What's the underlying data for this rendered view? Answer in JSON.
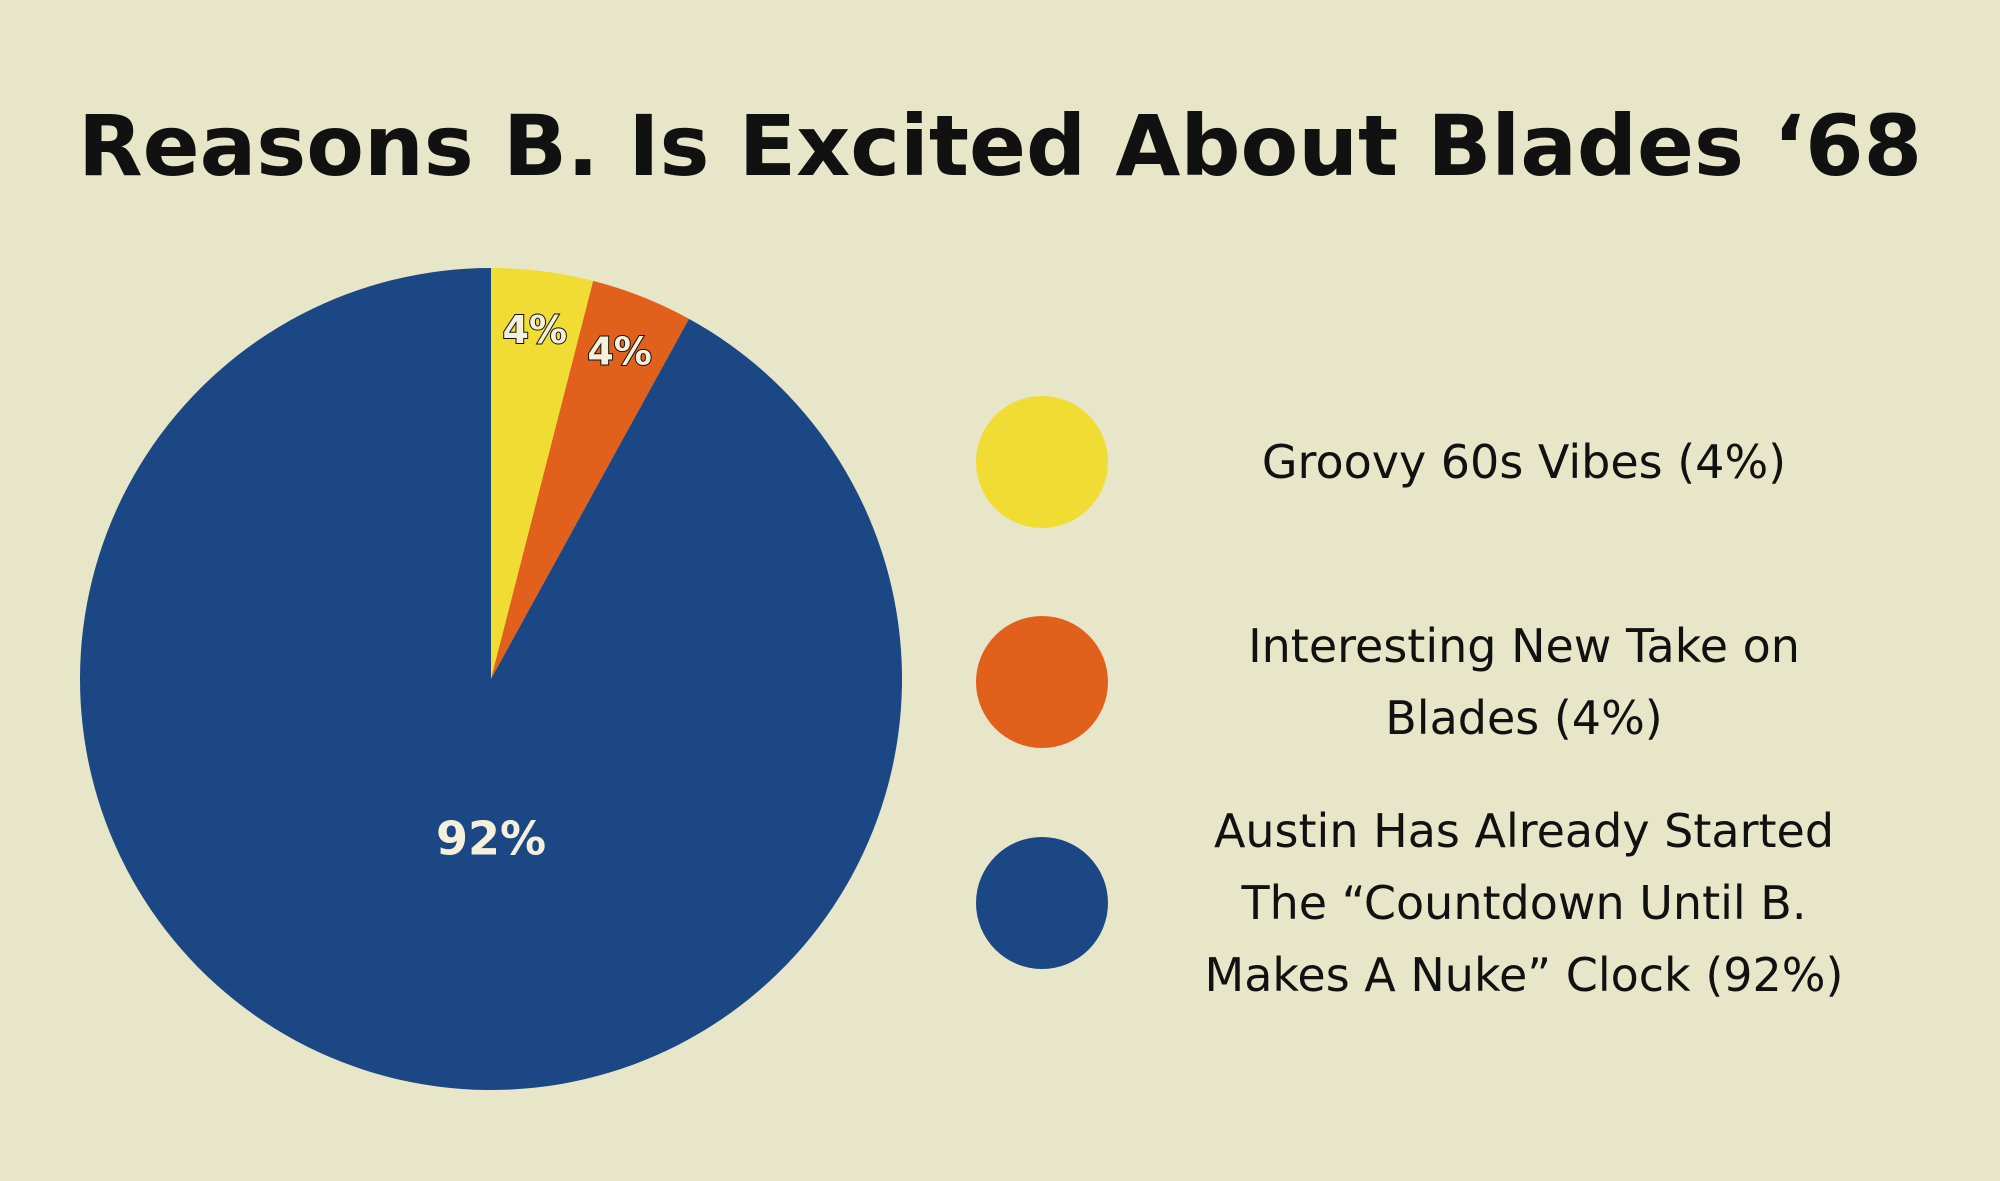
{
  "chart_data": {
    "type": "pie",
    "title": "Reasons B. Is Excited About Blades ‘68",
    "categories": [
      "Groovy 60s Vibes (4%)",
      "Interesting New Take on Blades (4%)",
      "Austin Has Already Started The “Countdown Until B. Makes A Nuke” Clock (92%)"
    ],
    "values": [
      4,
      4,
      92
    ],
    "value_labels": [
      "4%",
      "4%",
      "92%"
    ],
    "colors": [
      "#f0dc32",
      "#e0601c",
      "#1b4884"
    ]
  }
}
